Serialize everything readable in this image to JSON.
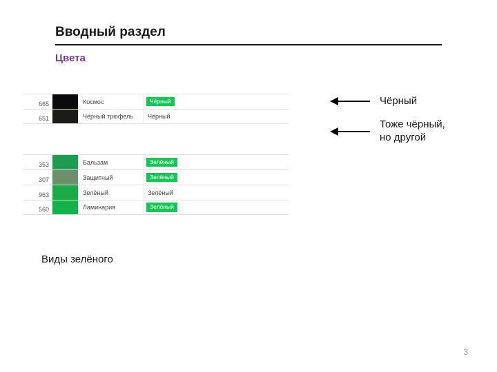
{
  "header": {
    "title": "Вводный раздел",
    "subtitle": "Цвета",
    "title_color": "#1a1a1a",
    "subtitle_color": "#7b3a8c"
  },
  "black_group": {
    "rows": [
      {
        "code": "665",
        "swatch": "#0b0b0e",
        "name": "Космос",
        "tag": "Чёрный",
        "tag_bg": "#17c455",
        "tag_mode": "pill"
      },
      {
        "code": "651",
        "swatch": "#1d1b17",
        "name": "Чёрный трюфель",
        "tag": "Чёрный",
        "tag_bg": null,
        "tag_mode": "plain"
      }
    ]
  },
  "green_group": {
    "rows": [
      {
        "code": "353",
        "swatch": "#1f9b52",
        "name": "Бальзам",
        "tag": "Зелёный",
        "tag_bg": "#17c455",
        "tag_mode": "pill"
      },
      {
        "code": "307",
        "swatch": "#6c8f6c",
        "name": "Защитный",
        "tag": "Зелёный",
        "tag_bg": "#17c455",
        "tag_mode": "pill"
      },
      {
        "code": "963",
        "swatch": "#1aab46",
        "name": "Зелёный",
        "tag": "Зелёный",
        "tag_bg": null,
        "tag_mode": "plain"
      },
      {
        "code": "560",
        "swatch": "#14b24a",
        "name": "Ламинария",
        "tag": "Зелёный",
        "tag_bg": "#17c455",
        "tag_mode": "pill"
      }
    ]
  },
  "annotations": {
    "a1": "Чёрный",
    "a2_l1": "Тоже чёрный,",
    "a2_l2": "но другой"
  },
  "caption": "Виды зелёного",
  "page_number": "3"
}
